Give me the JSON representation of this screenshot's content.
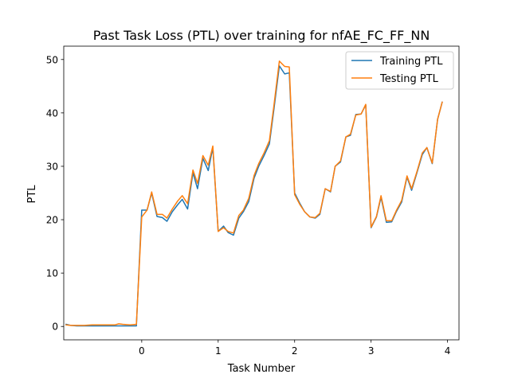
{
  "chart_data": {
    "type": "line",
    "title": "Past Task Loss (PTL) over training for nfAE_FC_FF_NN",
    "xlabel": "Task Number",
    "ylabel": "PTL",
    "xlim": [
      -1.02,
      4.15
    ],
    "ylim": [
      -2.5,
      52.5
    ],
    "xticks": [
      0,
      1,
      2,
      3,
      4
    ],
    "yticks": [
      0,
      10,
      20,
      30,
      40,
      50
    ],
    "grid": false,
    "legend_position": "top-right",
    "series": [
      {
        "name": "Training PTL",
        "color": "#1f77b4",
        "points": [
          [
            -0.99,
            0.4
          ],
          [
            -0.93,
            0.2
          ],
          [
            -0.85,
            0.1
          ],
          [
            -0.75,
            0.1
          ],
          [
            -0.65,
            0.1
          ],
          [
            -0.55,
            0.1
          ],
          [
            -0.45,
            0.1
          ],
          [
            -0.35,
            0.1
          ],
          [
            -0.25,
            0.1
          ],
          [
            -0.15,
            0.1
          ],
          [
            -0.07,
            0.1
          ],
          [
            0.0,
            21.8
          ],
          [
            0.07,
            21.8
          ],
          [
            0.13,
            25.0
          ],
          [
            0.2,
            20.6
          ],
          [
            0.27,
            20.4
          ],
          [
            0.33,
            19.7
          ],
          [
            0.4,
            21.5
          ],
          [
            0.47,
            22.8
          ],
          [
            0.53,
            23.8
          ],
          [
            0.6,
            22.0
          ],
          [
            0.67,
            28.8
          ],
          [
            0.73,
            25.8
          ],
          [
            0.8,
            31.5
          ],
          [
            0.87,
            29.2
          ],
          [
            0.93,
            33.5
          ],
          [
            1.0,
            17.8
          ],
          [
            1.07,
            18.8
          ],
          [
            1.13,
            17.6
          ],
          [
            1.2,
            17.1
          ],
          [
            1.27,
            20.3
          ],
          [
            1.33,
            21.5
          ],
          [
            1.4,
            23.4
          ],
          [
            1.47,
            27.8
          ],
          [
            1.53,
            30.0
          ],
          [
            1.6,
            32.0
          ],
          [
            1.67,
            34.2
          ],
          [
            1.73,
            40.8
          ],
          [
            1.8,
            48.8
          ],
          [
            1.87,
            47.3
          ],
          [
            1.93,
            47.5
          ],
          [
            2.0,
            25.0
          ],
          [
            2.07,
            23.0
          ],
          [
            2.13,
            21.5
          ],
          [
            2.2,
            20.5
          ],
          [
            2.27,
            20.3
          ],
          [
            2.33,
            21.0
          ],
          [
            2.4,
            25.8
          ],
          [
            2.47,
            25.2
          ],
          [
            2.53,
            30.0
          ],
          [
            2.6,
            30.8
          ],
          [
            2.67,
            35.5
          ],
          [
            2.73,
            35.8
          ],
          [
            2.8,
            39.7
          ],
          [
            2.87,
            39.8
          ],
          [
            2.93,
            41.5
          ],
          [
            3.0,
            18.5
          ],
          [
            3.07,
            20.5
          ],
          [
            3.13,
            24.2
          ],
          [
            3.2,
            19.5
          ],
          [
            3.27,
            19.6
          ],
          [
            3.33,
            21.5
          ],
          [
            3.4,
            23.3
          ],
          [
            3.47,
            28.0
          ],
          [
            3.53,
            25.5
          ],
          [
            3.6,
            28.8
          ],
          [
            3.67,
            32.2
          ],
          [
            3.73,
            33.5
          ],
          [
            3.8,
            30.5
          ],
          [
            3.87,
            38.8
          ],
          [
            3.93,
            42.0
          ]
        ]
      },
      {
        "name": "Testing PTL",
        "color": "#ff7f0e",
        "points": [
          [
            -0.99,
            0.3
          ],
          [
            -0.93,
            0.2
          ],
          [
            -0.85,
            0.2
          ],
          [
            -0.75,
            0.2
          ],
          [
            -0.65,
            0.3
          ],
          [
            -0.55,
            0.3
          ],
          [
            -0.45,
            0.3
          ],
          [
            -0.35,
            0.3
          ],
          [
            -0.3,
            0.5
          ],
          [
            -0.25,
            0.4
          ],
          [
            -0.15,
            0.3
          ],
          [
            -0.07,
            0.4
          ],
          [
            0.0,
            20.5
          ],
          [
            0.07,
            21.8
          ],
          [
            0.13,
            25.2
          ],
          [
            0.2,
            21.0
          ],
          [
            0.27,
            21.0
          ],
          [
            0.33,
            20.3
          ],
          [
            0.4,
            22.0
          ],
          [
            0.47,
            23.5
          ],
          [
            0.53,
            24.5
          ],
          [
            0.6,
            23.0
          ],
          [
            0.67,
            29.3
          ],
          [
            0.73,
            26.8
          ],
          [
            0.8,
            32.0
          ],
          [
            0.87,
            30.2
          ],
          [
            0.93,
            33.8
          ],
          [
            1.0,
            17.8
          ],
          [
            1.07,
            18.5
          ],
          [
            1.13,
            17.8
          ],
          [
            1.2,
            17.5
          ],
          [
            1.27,
            20.8
          ],
          [
            1.33,
            21.8
          ],
          [
            1.4,
            24.0
          ],
          [
            1.47,
            28.3
          ],
          [
            1.53,
            30.5
          ],
          [
            1.6,
            32.5
          ],
          [
            1.67,
            34.8
          ],
          [
            1.73,
            41.5
          ],
          [
            1.8,
            49.7
          ],
          [
            1.87,
            48.7
          ],
          [
            1.93,
            48.6
          ],
          [
            2.0,
            24.7
          ],
          [
            2.07,
            22.8
          ],
          [
            2.13,
            21.5
          ],
          [
            2.2,
            20.5
          ],
          [
            2.27,
            20.4
          ],
          [
            2.33,
            21.2
          ],
          [
            2.4,
            25.8
          ],
          [
            2.47,
            25.3
          ],
          [
            2.53,
            30.0
          ],
          [
            2.6,
            31.0
          ],
          [
            2.67,
            35.5
          ],
          [
            2.73,
            36.0
          ],
          [
            2.8,
            39.6
          ],
          [
            2.87,
            39.8
          ],
          [
            2.93,
            41.6
          ],
          [
            3.0,
            18.6
          ],
          [
            3.07,
            20.6
          ],
          [
            3.13,
            24.5
          ],
          [
            3.2,
            19.8
          ],
          [
            3.27,
            19.8
          ],
          [
            3.33,
            21.7
          ],
          [
            3.4,
            23.6
          ],
          [
            3.47,
            28.2
          ],
          [
            3.53,
            25.8
          ],
          [
            3.6,
            29.0
          ],
          [
            3.67,
            32.5
          ],
          [
            3.73,
            33.5
          ],
          [
            3.8,
            30.6
          ],
          [
            3.87,
            38.8
          ],
          [
            3.93,
            42.0
          ]
        ]
      }
    ]
  }
}
